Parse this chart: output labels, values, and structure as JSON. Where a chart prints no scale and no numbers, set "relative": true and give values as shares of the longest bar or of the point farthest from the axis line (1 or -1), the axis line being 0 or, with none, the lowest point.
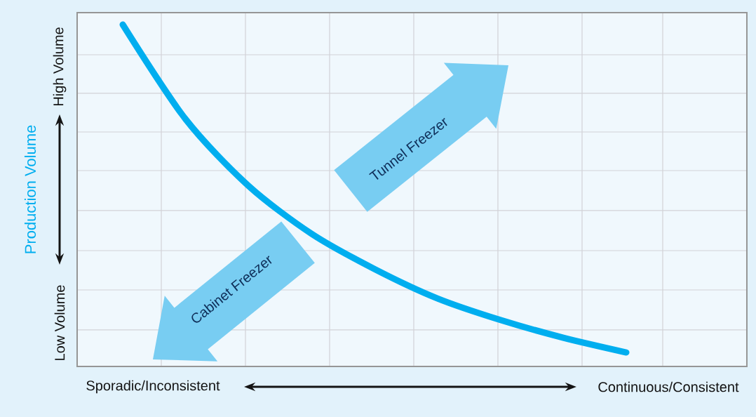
{
  "chart_data": {
    "type": "line",
    "relative": true,
    "grid": true,
    "ylabel": "Production Volume",
    "categories": [
      null,
      null,
      null,
      null,
      null,
      null,
      null,
      null,
      null
    ],
    "series": [
      {
        "color": "#00aeef",
        "values": [
          1,
          0.723,
          0.528,
          0.388,
          0.285,
          0.199,
          0.136,
          0.084,
          0.041
        ]
      }
    ],
    "annotations": [
      "High Volume",
      "Low Volume",
      "Sporadic/Inconsistent",
      "Continuous/Consistent",
      "Tunnel Freezer",
      "Cabinet Freezer"
    ]
  }
}
